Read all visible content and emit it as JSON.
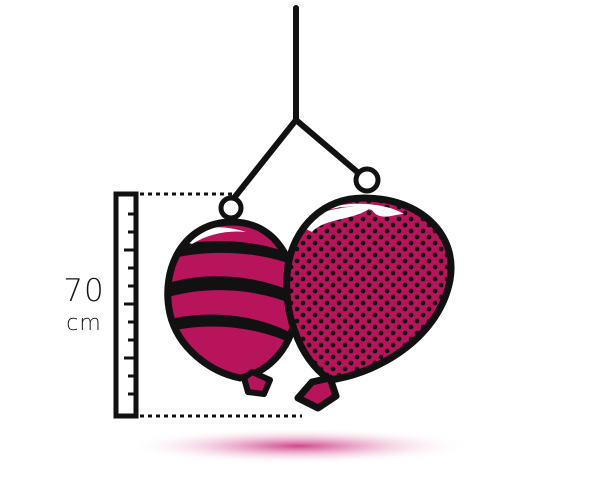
{
  "measurement": {
    "value": "70",
    "unit": "cm"
  },
  "colors": {
    "outline": "#111111",
    "balloon_fill": "#b8145c",
    "shadow": "#c8267a",
    "background": "#ffffff"
  },
  "icons": [
    "hanging-hook-icon",
    "ruler-icon",
    "striped-balloon-icon",
    "dotted-balloon-icon"
  ]
}
